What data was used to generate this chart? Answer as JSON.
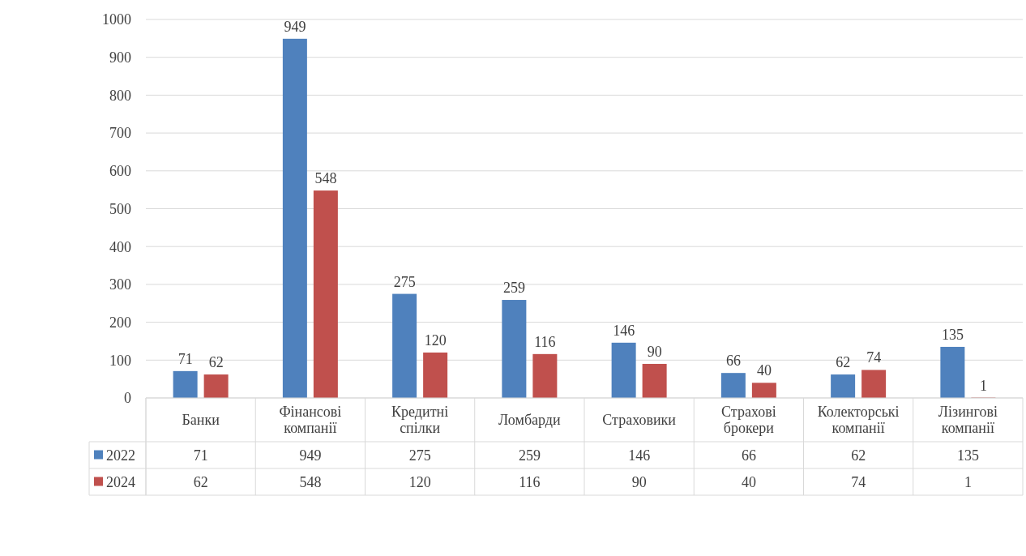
{
  "chart_data": {
    "type": "bar",
    "categories": [
      "Банки",
      "Фінансові компанії",
      "Кредитні спілки",
      "Ломбарди",
      "Страховики",
      "Страхові брокери",
      "Колекторські компанії",
      "Лізингові компанії"
    ],
    "series": [
      {
        "name": "2022",
        "color": "#4f81bd",
        "values": [
          71,
          949,
          275,
          259,
          146,
          66,
          62,
          135
        ]
      },
      {
        "name": "2024",
        "color": "#c0504d",
        "values": [
          62,
          548,
          120,
          116,
          90,
          40,
          74,
          1
        ]
      }
    ],
    "annotations": [
      "71",
      "949",
      "275",
      "259",
      "146",
      "66",
      "62",
      "135",
      "62",
      "548",
      "120",
      "116",
      "90",
      "40",
      "74",
      "1"
    ],
    "ylim": [
      0,
      1000
    ],
    "yticks": [
      0,
      100,
      200,
      300,
      400,
      500,
      600,
      700,
      800,
      900,
      1000
    ],
    "grid": "y",
    "data_labels": true,
    "legend": "bottom left"
  }
}
